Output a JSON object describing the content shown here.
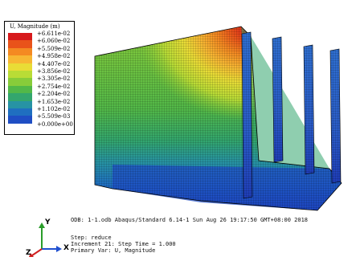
{
  "legend": {
    "title": "U, Magnitude (m)",
    "labels": [
      "+6.611e-02",
      "+6.060e-02",
      "+5.509e-02",
      "+4.958e-02",
      "+4.407e-02",
      "+3.856e-02",
      "+3.305e-02",
      "+2.754e-02",
      "+2.204e-02",
      "+1.653e-02",
      "+1.102e-02",
      "+5.509e-03",
      "+0.000e+00"
    ],
    "colors": [
      "#d7191c",
      "#e9531a",
      "#f48a22",
      "#f7b733",
      "#e9dc36",
      "#b9dc36",
      "#88cc3a",
      "#52b848",
      "#33a66d",
      "#2793a4",
      "#1f6fc0",
      "#1f4ec4",
      "#1f2fb4"
    ]
  },
  "info": {
    "line1": "ODB: 1-1.odb   Abaqus/Standard 6.14-1   Sun Aug 26 19:17:50 GMT+08:00 2018",
    "line2": "Step: reduce",
    "line3": "Increment    21: Step Time =    1.000",
    "line4": "Primary Var: U, Magnitude"
  },
  "triad": {
    "y": "Y",
    "x": "X",
    "z": "Z"
  }
}
